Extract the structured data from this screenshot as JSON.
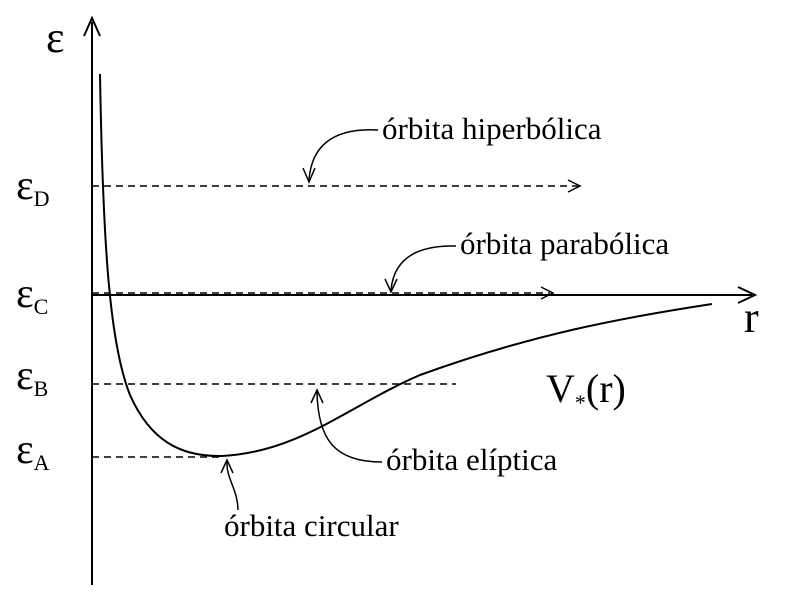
{
  "axes": {
    "y_label": "ε",
    "x_label": "r"
  },
  "levels": [
    {
      "id": "D",
      "base": "ε",
      "sub": "D"
    },
    {
      "id": "C",
      "base": "ε",
      "sub": "C"
    },
    {
      "id": "B",
      "base": "ε",
      "sub": "B"
    },
    {
      "id": "A",
      "base": "ε",
      "sub": "A"
    }
  ],
  "potential_label": {
    "main": "V",
    "sub": "*",
    "arg": "(r)"
  },
  "annotations": {
    "hyperbolic": "órbita hiperbólica",
    "parabolic": "órbita parabólica",
    "elliptic": "órbita elíptica",
    "circular": "órbita circular"
  },
  "colors": {
    "ink": "#000000",
    "background": "#ffffff"
  }
}
